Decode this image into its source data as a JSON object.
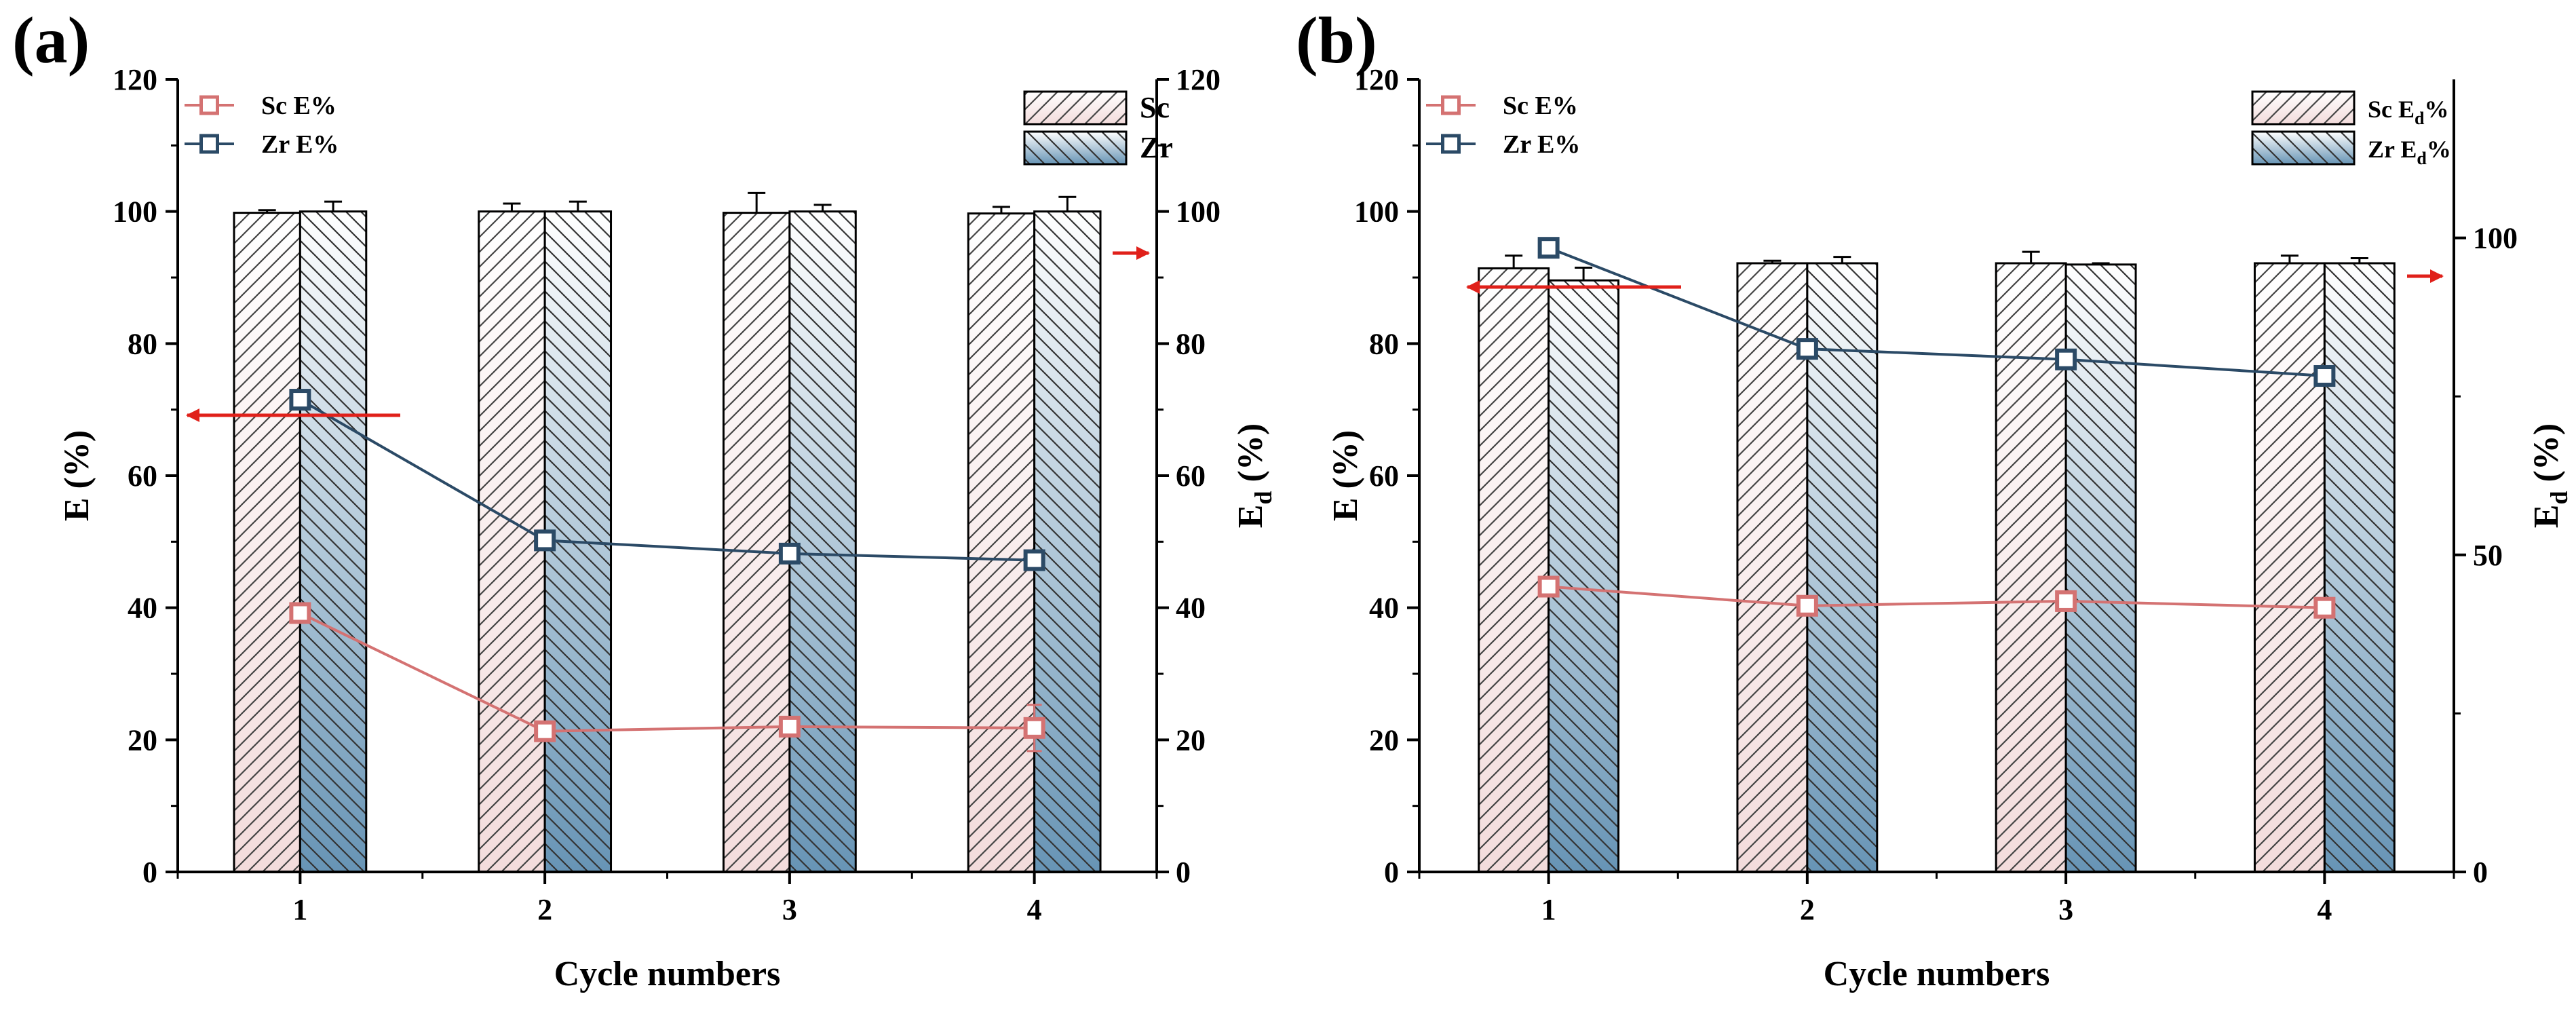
{
  "chart_data": [
    {
      "type": "bar+line",
      "panel_label": "(a)",
      "xlabel": "Cycle numbers",
      "ylabel_left": "E (%)",
      "ylabel_right": {
        "main": "E",
        "sub": "d",
        "suffix": " (%)"
      },
      "categories": [
        "1",
        "2",
        "3",
        "4"
      ],
      "ylim_left": [
        0,
        120
      ],
      "yticks_left": [
        "0",
        "20",
        "40",
        "60",
        "80",
        "100",
        "120"
      ],
      "ylim_right": [
        0,
        120
      ],
      "yticks_right": [
        "0",
        "20",
        "40",
        "60",
        "80",
        "100",
        "120"
      ],
      "bar_series": [
        {
          "name": "Sc",
          "legend": [
            {
              "t": "Sc"
            }
          ],
          "values": [
            99.8,
            100.0,
            99.8,
            99.7
          ],
          "errors": [
            0.4,
            1.2,
            3.0,
            1.0
          ],
          "color": "#f6e1e1",
          "pattern": "hatch-forward"
        },
        {
          "name": "Zr",
          "legend": [
            {
              "t": "Zr"
            }
          ],
          "values": [
            100.0,
            100.0,
            100.0,
            100.0
          ],
          "errors": [
            1.5,
            1.5,
            1.0,
            2.2
          ],
          "color": "#6d9bbb",
          "pattern": "hatch-back"
        }
      ],
      "line_series": [
        {
          "name": "Sc E%",
          "values": [
            39.2,
            21.3,
            22.0,
            21.8
          ],
          "errors": [
            0,
            0,
            0,
            3.5
          ],
          "color": "#d47272"
        },
        {
          "name": "Zr E%",
          "values": [
            71.5,
            50.2,
            48.2,
            47.2
          ],
          "errors": [
            0,
            0,
            0,
            0
          ],
          "color": "#2b4a66"
        }
      ],
      "axis_arrows": [
        "left-axis",
        "right-axis"
      ]
    },
    {
      "type": "bar+line",
      "panel_label": "(b)",
      "xlabel": "Cycle numbers",
      "ylabel_left": "E (%)",
      "ylabel_right": {
        "main": "E",
        "sub": "d",
        "suffix": " (%)"
      },
      "categories": [
        "1",
        "2",
        "3",
        "4"
      ],
      "ylim_left": [
        0,
        120
      ],
      "yticks_left": [
        "0",
        "20",
        "40",
        "60",
        "80",
        "100",
        "120"
      ],
      "ylim_right": [
        0,
        125
      ],
      "yticks_right": [
        "0",
        "50",
        "100"
      ],
      "bar_series": [
        {
          "name": "Sc Ed%",
          "legend": [
            {
              "t": "Sc E"
            },
            {
              "t": "d",
              "sub": true
            },
            {
              "t": "%"
            }
          ],
          "values": [
            95.2,
            96.0,
            96.0,
            96.0
          ],
          "errors": [
            2.0,
            0.4,
            1.8,
            1.2
          ],
          "color": "#f6e1e1",
          "pattern": "hatch-forward"
        },
        {
          "name": "Zr Ed%",
          "legend": [
            {
              "t": "Zr E"
            },
            {
              "t": "d",
              "sub": true
            },
            {
              "t": "%"
            }
          ],
          "values": [
            93.3,
            96.0,
            95.8,
            96.0
          ],
          "errors": [
            2.0,
            1.0,
            0.2,
            0.8
          ],
          "color": "#6d9bbb",
          "pattern": "hatch-back"
        }
      ],
      "line_series": [
        {
          "name": "Sc E%",
          "values": [
            43.2,
            40.3,
            41.0,
            40.0
          ],
          "errors": [
            0,
            0,
            0,
            0
          ],
          "color": "#d47272"
        },
        {
          "name": "Zr E%",
          "values": [
            94.5,
            79.2,
            77.6,
            75.1
          ],
          "errors": [
            0,
            0,
            0,
            0
          ],
          "color": "#2b4a66"
        }
      ],
      "axis_arrows": [
        "left-axis",
        "right-axis"
      ]
    }
  ]
}
